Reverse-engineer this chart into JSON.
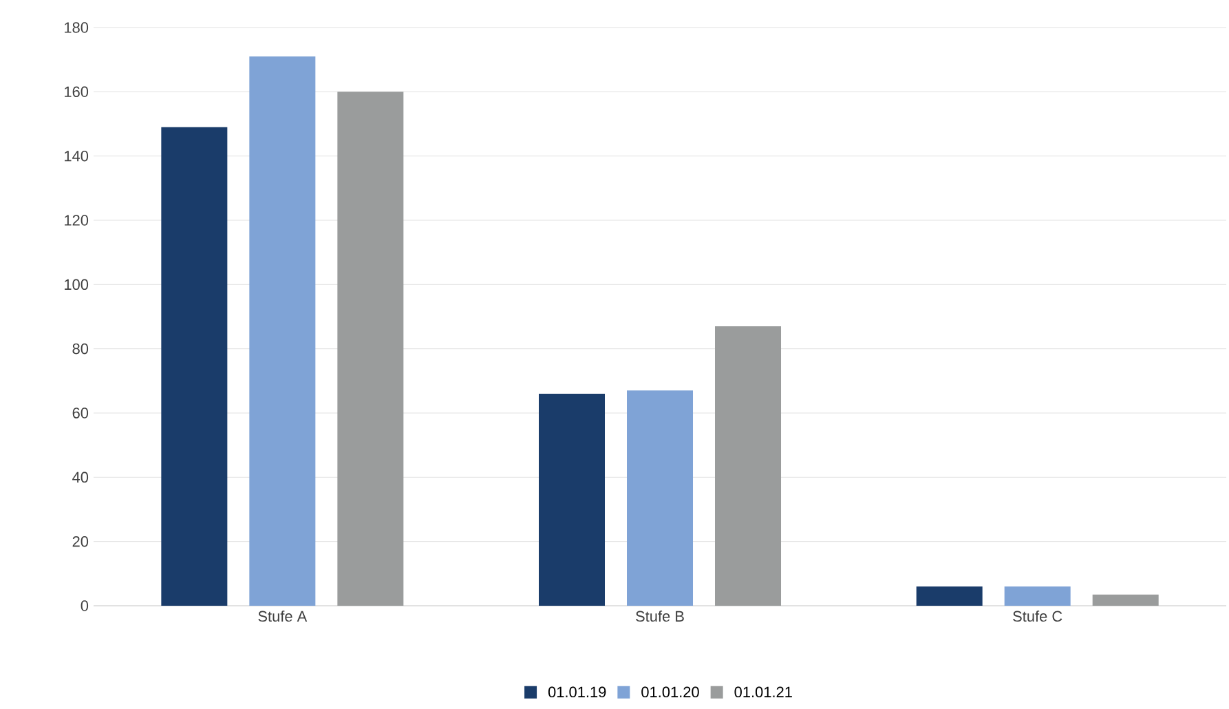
{
  "chart_data": {
    "type": "bar",
    "categories": [
      "Stufe A",
      "Stufe B",
      "Stufe C"
    ],
    "series": [
      {
        "name": "01.01.19",
        "color": "#1a3c6a",
        "values": [
          149,
          66,
          6
        ]
      },
      {
        "name": "01.01.20",
        "color": "#7fa3d6",
        "values": [
          171,
          67,
          6
        ]
      },
      {
        "name": "01.01.21",
        "color": "#9a9c9c",
        "values": [
          160,
          87,
          3.5
        ]
      }
    ],
    "ylim": [
      0,
      180
    ],
    "yticks": [
      0,
      20,
      40,
      60,
      80,
      100,
      120,
      140,
      160,
      180
    ],
    "grid": "y",
    "legend": "bottom"
  }
}
